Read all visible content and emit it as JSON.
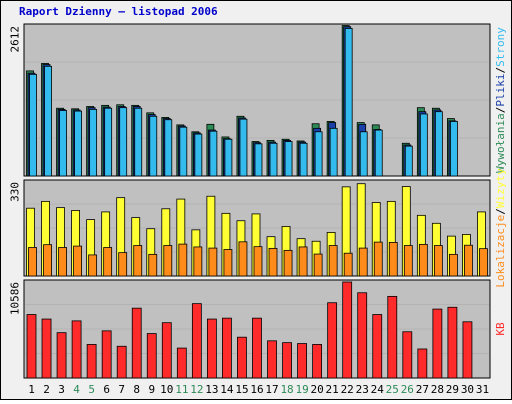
{
  "colors": {
    "frame_bg": "#f0f0f0",
    "plot_bg": "#c0c0c0",
    "title": "#0000cc",
    "axis": "#000000",
    "hits": "#2e8b57",
    "files": "#1a3fa8",
    "pages": "#33bbee",
    "visits": "#ff8c1a",
    "sites": "#ffff33",
    "kbytes": "#ff2a2a",
    "day_default": "#000000",
    "day_weekend": "#2e8b57"
  },
  "title": "Raport Dzienny –  listopad 2006",
  "chart_data": [
    {
      "type": "bar",
      "panel": "top",
      "ymax_label": "2612",
      "ylim": [
        0,
        2612
      ],
      "categories": [
        "1",
        "2",
        "3",
        "4",
        "5",
        "6",
        "7",
        "8",
        "9",
        "10",
        "11",
        "12",
        "13",
        "14",
        "15",
        "16",
        "17",
        "18",
        "19",
        "20",
        "21",
        "22",
        "23",
        "24",
        "25",
        "26",
        "27",
        "28",
        "29",
        "30",
        "31"
      ],
      "legend": [
        {
          "label": "Wywołania",
          "color": "#2e8b57"
        },
        {
          "label": "/",
          "color": "#000000"
        },
        {
          "label": "Pliki",
          "color": "#1a3fa8"
        },
        {
          "label": "/",
          "color": "#000000"
        },
        {
          "label": "Strony",
          "color": "#33bbee"
        }
      ],
      "series": [
        {
          "name": "Wywołania",
          "values": [
            1830,
            1960,
            1180,
            1170,
            1210,
            1230,
            1240,
            1230,
            1100,
            1020,
            890,
            770,
            900,
            680,
            1040,
            600,
            620,
            640,
            610,
            910,
            950,
            2620,
            930,
            890,
            0,
            570,
            1190,
            1180,
            1000,
            0,
            0
          ]
        },
        {
          "name": "Pliki",
          "values": [
            1790,
            1940,
            1160,
            1150,
            1190,
            1200,
            1210,
            1210,
            1070,
            1000,
            870,
            750,
            800,
            650,
            1010,
            580,
            590,
            620,
            590,
            830,
            930,
            2600,
            900,
            810,
            0,
            540,
            1120,
            1150,
            960,
            0,
            0
          ]
        },
        {
          "name": "Strony",
          "values": [
            1770,
            1910,
            1140,
            1130,
            1160,
            1180,
            1190,
            1180,
            1040,
            980,
            850,
            730,
            780,
            640,
            990,
            560,
            570,
            600,
            570,
            770,
            830,
            2570,
            770,
            800,
            0,
            520,
            1080,
            1120,
            950,
            0,
            0
          ]
        }
      ]
    },
    {
      "type": "bar",
      "panel": "middle",
      "ymax_label": "330",
      "ylim": [
        0,
        330
      ],
      "categories": [
        "1",
        "2",
        "3",
        "4",
        "5",
        "6",
        "7",
        "8",
        "9",
        "10",
        "11",
        "12",
        "13",
        "14",
        "15",
        "16",
        "17",
        "18",
        "19",
        "20",
        "21",
        "22",
        "23",
        "24",
        "25",
        "26",
        "27",
        "28",
        "29",
        "30",
        "31"
      ],
      "legend": [
        {
          "label": "Lokalizacje",
          "color": "#ff8c1a"
        },
        {
          "label": "/",
          "color": "#000000"
        },
        {
          "label": "Wizyty",
          "color": "#ffff33"
        }
      ],
      "series": [
        {
          "name": "Wizyty",
          "values": [
            238,
            262,
            240,
            230,
            198,
            225,
            275,
            205,
            166,
            236,
            270,
            162,
            280,
            220,
            194,
            218,
            138,
            174,
            131,
            122,
            153,
            313,
            324,
            258,
            262,
            314,
            213,
            185,
            140,
            146,
            225
          ]
        },
        {
          "name": "Lokalizacje",
          "values": [
            100,
            110,
            100,
            105,
            74,
            100,
            82,
            107,
            76,
            107,
            112,
            102,
            98,
            93,
            120,
            103,
            97,
            90,
            102,
            77,
            107,
            80,
            98,
            119,
            118,
            107,
            111,
            107,
            76,
            108,
            96
          ]
        }
      ]
    },
    {
      "type": "bar",
      "panel": "bottom",
      "ymax_label": "10586",
      "ylim": [
        0,
        10586
      ],
      "categories": [
        "1",
        "2",
        "3",
        "4",
        "5",
        "6",
        "7",
        "8",
        "9",
        "10",
        "11",
        "12",
        "13",
        "14",
        "15",
        "16",
        "17",
        "18",
        "19",
        "20",
        "21",
        "22",
        "23",
        "24",
        "25",
        "26",
        "27",
        "28",
        "29",
        "30",
        "31"
      ],
      "legend": [
        {
          "label": "KB",
          "color": "#ff2a2a"
        }
      ],
      "series": [
        {
          "name": "KB",
          "values": [
            7000,
            6500,
            5000,
            6300,
            3700,
            5200,
            3500,
            7700,
            4900,
            6100,
            3300,
            8200,
            6500,
            6600,
            4500,
            6600,
            4100,
            3900,
            3800,
            3700,
            8300,
            10586,
            9400,
            7000,
            9000,
            5100,
            3200,
            7600,
            7800,
            6200,
            0
          ]
        }
      ]
    }
  ],
  "days": [
    {
      "label": "1",
      "weekend": false
    },
    {
      "label": "2",
      "weekend": false
    },
    {
      "label": "3",
      "weekend": false
    },
    {
      "label": "4",
      "weekend": true
    },
    {
      "label": "5",
      "weekend": true
    },
    {
      "label": "6",
      "weekend": false
    },
    {
      "label": "7",
      "weekend": false
    },
    {
      "label": "8",
      "weekend": false
    },
    {
      "label": "9",
      "weekend": false
    },
    {
      "label": "10",
      "weekend": false
    },
    {
      "label": "11",
      "weekend": true
    },
    {
      "label": "12",
      "weekend": true
    },
    {
      "label": "13",
      "weekend": false
    },
    {
      "label": "14",
      "weekend": false
    },
    {
      "label": "15",
      "weekend": false
    },
    {
      "label": "16",
      "weekend": false
    },
    {
      "label": "17",
      "weekend": false
    },
    {
      "label": "18",
      "weekend": true
    },
    {
      "label": "19",
      "weekend": true
    },
    {
      "label": "20",
      "weekend": false
    },
    {
      "label": "21",
      "weekend": false
    },
    {
      "label": "22",
      "weekend": false
    },
    {
      "label": "23",
      "weekend": false
    },
    {
      "label": "24",
      "weekend": false
    },
    {
      "label": "25",
      "weekend": true
    },
    {
      "label": "26",
      "weekend": true
    },
    {
      "label": "27",
      "weekend": false
    },
    {
      "label": "28",
      "weekend": false
    },
    {
      "label": "29",
      "weekend": false
    },
    {
      "label": "30",
      "weekend": false
    },
    {
      "label": "31",
      "weekend": false
    }
  ]
}
